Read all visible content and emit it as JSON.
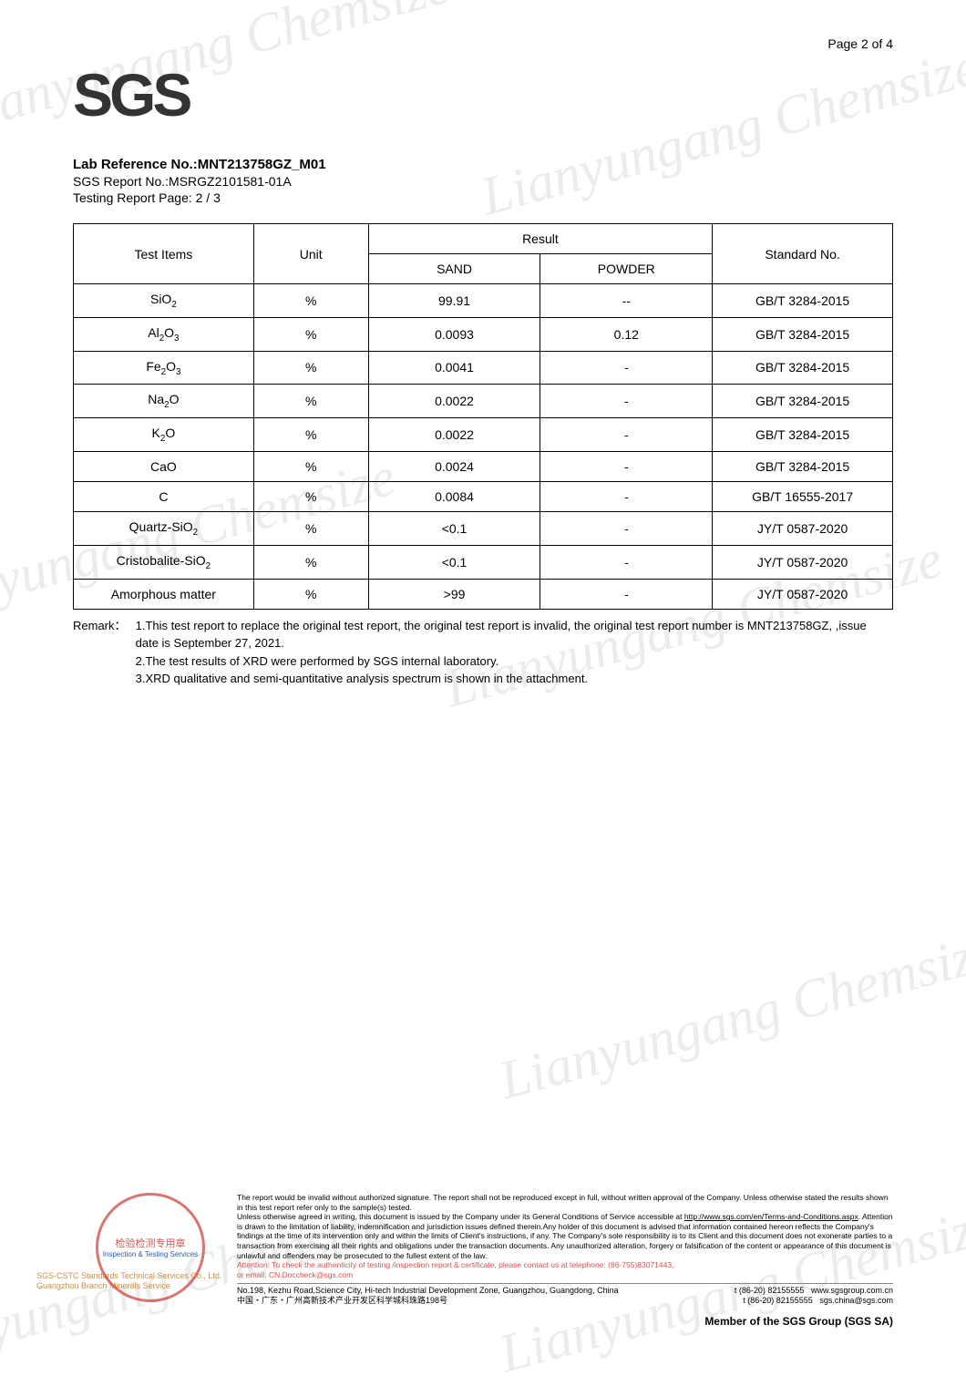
{
  "page_number": "Page 2 of 4",
  "logo_text": "SGS",
  "header": {
    "lab_ref_label": "Lab Reference No.:",
    "lab_ref_value": "MNT213758GZ_M01",
    "sgs_report": "SGS Report No.:MSRGZ2101581-01A",
    "testing_page": "Testing Report Page: 2 / 3"
  },
  "table": {
    "col_test_items": "Test Items",
    "col_unit": "Unit",
    "col_result": "Result",
    "col_sand": "SAND",
    "col_powder": "POWDER",
    "col_standard": "Standard No.",
    "rows": [
      {
        "item": "SiO₂",
        "unit": "%",
        "sand": "99.91",
        "powder": "--",
        "std": "GB/T 3284-2015"
      },
      {
        "item": "Al₂O₃",
        "unit": "%",
        "sand": "0.0093",
        "powder": "0.12",
        "std": "GB/T 3284-2015"
      },
      {
        "item": "Fe₂O₃",
        "unit": "%",
        "sand": "0.0041",
        "powder": "-",
        "std": "GB/T 3284-2015"
      },
      {
        "item": "Na₂O",
        "unit": "%",
        "sand": "0.0022",
        "powder": "-",
        "std": "GB/T 3284-2015"
      },
      {
        "item": "K₂O",
        "unit": "%",
        "sand": "0.0022",
        "powder": "-",
        "std": "GB/T 3284-2015"
      },
      {
        "item": "CaO",
        "unit": "%",
        "sand": "0.0024",
        "powder": "-",
        "std": "GB/T 3284-2015"
      },
      {
        "item": "C",
        "unit": "%",
        "sand": "0.0084",
        "powder": "-",
        "std": "GB/T 16555-2017"
      },
      {
        "item": "Quartz-SiO₂",
        "unit": "%",
        "sand": "<0.1",
        "powder": "-",
        "std": "JY/T 0587-2020"
      },
      {
        "item": "Cristobalite-SiO₂",
        "unit": "%",
        "sand": "<0.1",
        "powder": "-",
        "std": "JY/T 0587-2020"
      },
      {
        "item": "Amorphous matter",
        "unit": "%",
        "sand": ">99",
        "powder": "-",
        "std": "JY/T 0587-2020"
      }
    ]
  },
  "remark": {
    "label": "Remark：",
    "line1": "1.This test report to replace the original test report, the original test report is invalid, the original test report number is MNT213758GZ, ,issue date is September 27, 2021.",
    "line2": "2.The test results of XRD were performed by SGS internal laboratory.",
    "line3": "3.XRD qualitative and semi-quantitative analysis spectrum is shown in the attachment."
  },
  "seal": {
    "line1": "检验检测专用章",
    "line2": "Inspection & Testing Services"
  },
  "sgs_side": {
    "l1": "SGS-CSTC Standards Technical Services Co., Ltd.",
    "l2": "Guangzhou Branch            Minerals Service"
  },
  "disclaimer": {
    "p1": "The report would be invalid without authorized signature. The report shall not be reproduced except in full, without written approval of the Company. Unless otherwise stated the results shown in this test report refer only to the sample(s) tested.",
    "p2a": "Unless otherwise agreed in writing, this document is issued by the Company under its General Conditions of Service accessible at ",
    "p2link": "http://www.sgs.com/en/Terms-and-Conditions.aspx",
    "p2b": ". Attention is drawn to the limitation of liability, indemnification and jurisdiction issues defined therein.Any holder of this document is advised that information contained hereon reflects the Company's findings at the time of its intervention only and within the limits of Client's instructions, if any. The Company's sole responsibility is to its Client and this document does not exonerate parties to a transaction from exercising all their rights and obligations under the transaction documents. Any unauthorized alteration, forgery or falsification of the content or appearance of this document is unlawful and offenders may be prosecuted to the fullest extent of the law.",
    "attn1": "Attention: To check the authenticity of testing /inspection report & certificate, please contact us at telephone: (86-755)83071443,",
    "attn2": "or email: CN.Doccheck@sgs.com"
  },
  "address": {
    "en": "No.198, Kezhu Road,Science City, Hi-tech Industrial Development Zone, Guangzhou, Guangdong, China",
    "cn": "中国・广东・广州高新技术产业开发区科学城科珠路198号",
    "tel1": "t (86-20) 82155555",
    "tel2": "t (86-20) 82155555",
    "web": "www.sgsgroup.com.cn",
    "email": "sgs.china@sgs.com"
  },
  "member": "Member of the SGS Group (SGS SA)",
  "watermark_text": "Lianyungang Chemsize",
  "colors": {
    "text": "#000000",
    "attn": "#d9534f",
    "seal": "rgba(200,60,50,0.8)",
    "side": "#d08f3f"
  }
}
